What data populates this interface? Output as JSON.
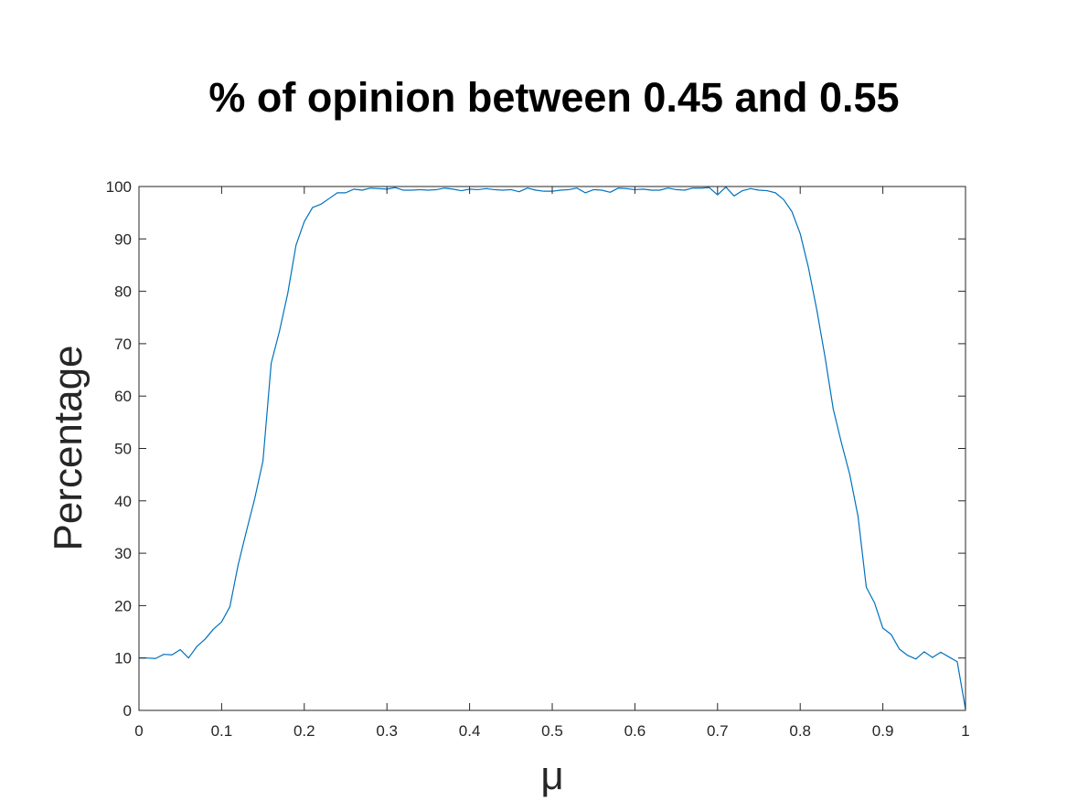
{
  "chart_data": {
    "type": "line",
    "title": "% of opinion between 0.45 and 0.55",
    "xlabel": "μ",
    "ylabel": "Percentage",
    "xlim": [
      0,
      1
    ],
    "ylim": [
      0,
      100
    ],
    "grid": false,
    "legend": "none",
    "x_ticks": [
      "0",
      "0.1",
      "0.2",
      "0.3",
      "0.4",
      "0.5",
      "0.6",
      "0.7",
      "0.8",
      "0.9",
      "1"
    ],
    "y_ticks": [
      "0",
      "10",
      "20",
      "30",
      "40",
      "50",
      "60",
      "70",
      "80",
      "90",
      "100"
    ],
    "series": [
      {
        "color": "#0072BD",
        "x": [
          0,
          0.01,
          0.02,
          0.03,
          0.04,
          0.05,
          0.06,
          0.07,
          0.08,
          0.09,
          0.1,
          0.11,
          0.12,
          0.13,
          0.14,
          0.15,
          0.16,
          0.17,
          0.18,
          0.19,
          0.2,
          0.21,
          0.22,
          0.23,
          0.24,
          0.25,
          0.26,
          0.27,
          0.28,
          0.29,
          0.3,
          0.31,
          0.32,
          0.33,
          0.34,
          0.35,
          0.36,
          0.37,
          0.38,
          0.39,
          0.4,
          0.41,
          0.42,
          0.43,
          0.44,
          0.45,
          0.46,
          0.47,
          0.48,
          0.49,
          0.5,
          0.51,
          0.52,
          0.53,
          0.54,
          0.55,
          0.56,
          0.57,
          0.58,
          0.59,
          0.6,
          0.61,
          0.62,
          0.63,
          0.64,
          0.65,
          0.66,
          0.67,
          0.68,
          0.69,
          0.7,
          0.71,
          0.72,
          0.73,
          0.74,
          0.75,
          0.76,
          0.77,
          0.78,
          0.79,
          0.8,
          0.81,
          0.82,
          0.83,
          0.84,
          0.85,
          0.86,
          0.87,
          0.88,
          0.89,
          0.9,
          0.91,
          0.92,
          0.93,
          0.94,
          0.95,
          0.96,
          0.97,
          0.98,
          0.99,
          1.0
        ],
        "y": [
          10,
          10,
          9.9,
          10.7,
          10.6,
          11.6,
          10,
          12.2,
          13.6,
          15.5,
          16.9,
          19.8,
          27.8,
          34.2,
          40.4,
          47.6,
          66.3,
          72.4,
          79.6,
          88.8,
          93.3,
          96,
          96.6,
          97.7,
          98.8,
          98.8,
          99.5,
          99.3,
          99.7,
          99.6,
          99.5,
          99.8,
          99.3,
          99.3,
          99.4,
          99.3,
          99.4,
          99.7,
          99.5,
          99.2,
          99.5,
          99.4,
          99.6,
          99.4,
          99.3,
          99.4,
          99.0,
          99.7,
          99.3,
          99.1,
          99.1,
          99.3,
          99.4,
          99.7,
          98.8,
          99.4,
          99.3,
          98.9,
          99.7,
          99.6,
          99.4,
          99.5,
          99.3,
          99.3,
          99.7,
          99.4,
          99.3,
          99.7,
          99.7,
          99.8,
          98.4,
          99.9,
          98.2,
          99.2,
          99.6,
          99.3,
          99.2,
          98.8,
          97.5,
          95.2,
          91.0,
          84.5,
          76.5,
          67.5,
          57.5,
          51.0,
          45.0,
          37.0,
          23.5,
          20.5,
          15.7,
          14.5,
          11.7,
          10.5,
          9.8,
          11.2,
          10.1,
          11.1,
          10.2,
          9.3,
          0.2
        ]
      }
    ]
  }
}
